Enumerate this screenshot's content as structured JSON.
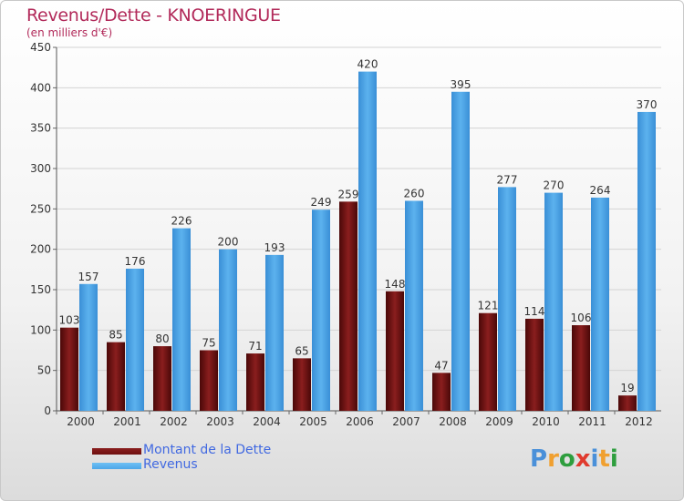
{
  "title": "Revenus/Dette - KNOERINGUE",
  "subtitle": "(en milliers d'€)",
  "logo": {
    "text": "Proxiti",
    "letters": [
      "P",
      "r",
      "o",
      "x",
      "i",
      "t",
      "i"
    ],
    "colors": [
      "#4a90d9",
      "#f0a030",
      "#2e9e3e",
      "#e03a2e",
      "#4a90d9",
      "#f0a030",
      "#2e9e3e"
    ]
  },
  "chart_data": {
    "type": "bar",
    "title": "Revenus/Dette - KNOERINGUE",
    "subtitle": "(en milliers d'€)",
    "categories": [
      "2000",
      "2001",
      "2002",
      "2003",
      "2004",
      "2005",
      "2006",
      "2007",
      "2008",
      "2009",
      "2010",
      "2011",
      "2012"
    ],
    "series": [
      {
        "name": "Montant de la Dette",
        "color": "#6e1010",
        "values": [
          103,
          85,
          80,
          75,
          71,
          65,
          259,
          148,
          47,
          121,
          114,
          106,
          19
        ]
      },
      {
        "name": "Revenus",
        "color": "#4da6e8",
        "values": [
          157,
          176,
          226,
          200,
          193,
          249,
          420,
          260,
          395,
          277,
          270,
          264,
          370
        ]
      }
    ],
    "ylim": [
      0,
      450
    ],
    "yticks": [
      0,
      50,
      100,
      150,
      200,
      250,
      300,
      350,
      400,
      450
    ],
    "grid": true,
    "legend_position": "bottom-left"
  }
}
